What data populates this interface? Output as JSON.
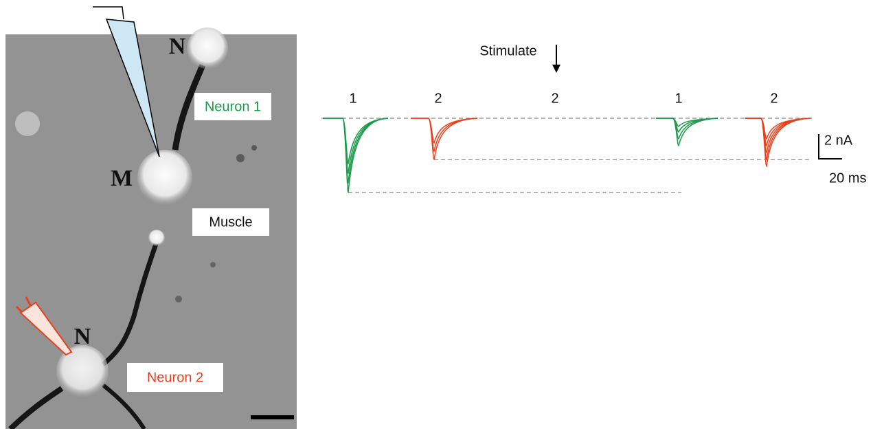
{
  "photo": {
    "marks": [
      "N",
      "M",
      "N"
    ],
    "neuron1": "Neuron 1",
    "muscle": "Muscle",
    "neuron2": "Neuron 2"
  },
  "recording": {
    "stimulate": "Stimulate",
    "labels": [
      "1",
      "2",
      "2",
      "1",
      "2"
    ]
  },
  "scale": {
    "current": "2 nA",
    "time": "20 ms"
  }
}
